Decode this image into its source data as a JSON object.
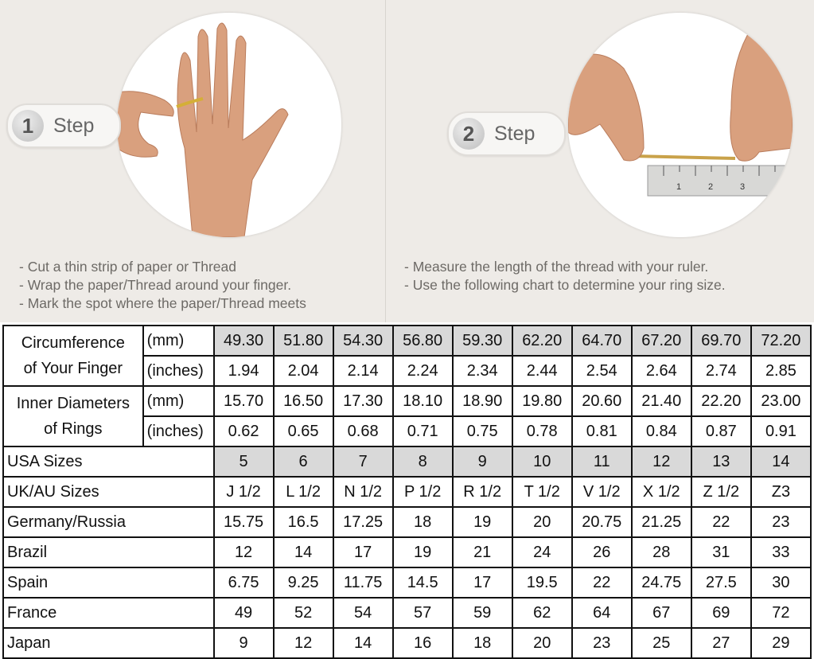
{
  "steps": [
    {
      "number": "1",
      "label": "Step",
      "instructions": [
        "-  Cut a thin strip of paper or Thread",
        "-  Wrap the paper/Thread around your finger.",
        "-  Mark the spot where the paper/Thread meets"
      ]
    },
    {
      "number": "2",
      "label": "Step",
      "instructions": [
        "-  Measure the length of the thread with your ruler.",
        "-  Use the following chart to determine your ring size."
      ]
    }
  ],
  "ruler": {
    "ticks": [
      "1",
      "2",
      "3"
    ]
  },
  "table": {
    "groups": [
      {
        "label_line1": "Circumference",
        "label_line2": "of Your Finger",
        "rows": [
          {
            "unit": "(mm)",
            "values": [
              "49.30",
              "51.80",
              "54.30",
              "56.80",
              "59.30",
              "62.20",
              "64.70",
              "67.20",
              "69.70",
              "72.20"
            ]
          },
          {
            "unit": "(inches)",
            "values": [
              "1.94",
              "2.04",
              "2.14",
              "2.24",
              "2.34",
              "2.44",
              "2.54",
              "2.64",
              "2.74",
              "2.85"
            ]
          }
        ]
      },
      {
        "label_line1": "Inner Diameters",
        "label_line2": "of Rings",
        "rows": [
          {
            "unit": "(mm)",
            "values": [
              "15.70",
              "16.50",
              "17.30",
              "18.10",
              "18.90",
              "19.80",
              "20.60",
              "21.40",
              "22.20",
              "23.00"
            ]
          },
          {
            "unit": "(inches)",
            "values": [
              "0.62",
              "0.65",
              "0.68",
              "0.71",
              "0.75",
              "0.78",
              "0.81",
              "0.84",
              "0.87",
              "0.91"
            ]
          }
        ]
      }
    ],
    "rows": [
      {
        "name": "USA Sizes",
        "values": [
          "5",
          "6",
          "7",
          "8",
          "9",
          "10",
          "11",
          "12",
          "13",
          "14"
        ]
      },
      {
        "name": "UK/AU Sizes",
        "values": [
          "J 1/2",
          "L 1/2",
          "N 1/2",
          "P 1/2",
          "R 1/2",
          "T 1/2",
          "V 1/2",
          "X 1/2",
          "Z 1/2",
          "Z3"
        ]
      },
      {
        "name": "Germany/Russia",
        "values": [
          "15.75",
          "16.5",
          "17.25",
          "18",
          "19",
          "20",
          "20.75",
          "21.25",
          "22",
          "23"
        ]
      },
      {
        "name": "Brazil",
        "values": [
          "12",
          "14",
          "17",
          "19",
          "21",
          "24",
          "26",
          "28",
          "31",
          "33"
        ]
      },
      {
        "name": "Spain",
        "values": [
          "6.75",
          "9.25",
          "11.75",
          "14.5",
          "17",
          "19.5",
          "22",
          "24.75",
          "27.5",
          "30"
        ]
      },
      {
        "name": "France",
        "values": [
          "49",
          "52",
          "54",
          "57",
          "59",
          "62",
          "64",
          "67",
          "69",
          "72"
        ]
      },
      {
        "name": "Japan",
        "values": [
          "9",
          "12",
          "14",
          "16",
          "18",
          "20",
          "23",
          "25",
          "27",
          "29"
        ]
      }
    ],
    "highlight_color": "#d9d9d9"
  }
}
